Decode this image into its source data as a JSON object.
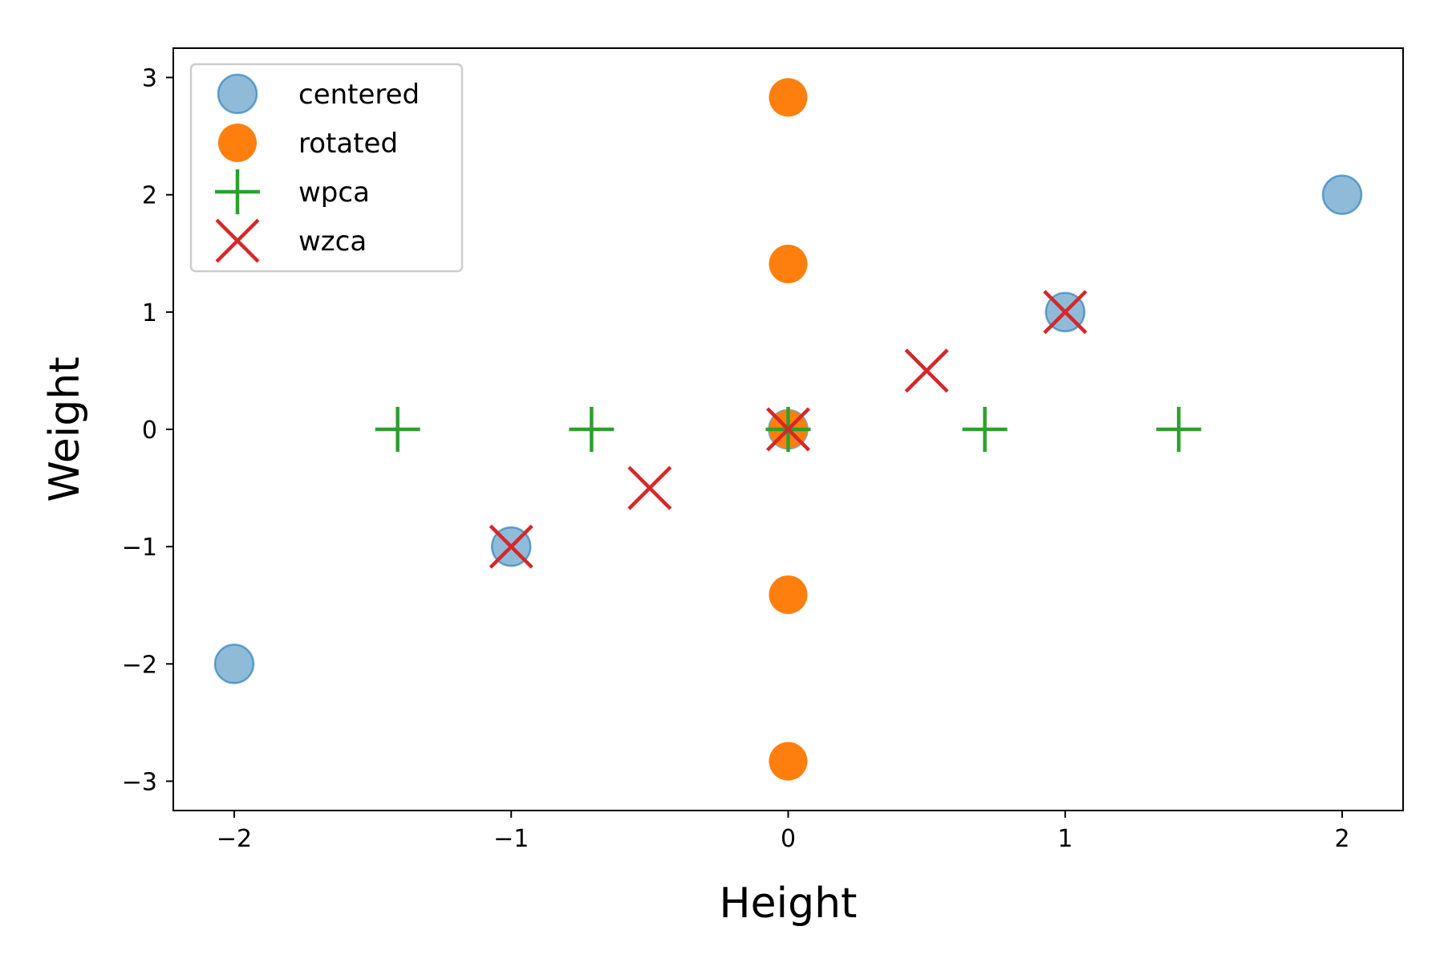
{
  "chart_data": {
    "type": "scatter",
    "title": "",
    "xlabel": "Height",
    "ylabel": "Weight",
    "xlim": [
      -2.22,
      2.22
    ],
    "ylim": [
      -3.25,
      3.25
    ],
    "xticks": [
      -2,
      -1,
      0,
      1,
      2
    ],
    "yticks": [
      -3,
      -2,
      -1,
      0,
      1,
      2,
      3
    ],
    "xtick_labels": [
      "−2",
      "−1",
      "0",
      "1",
      "2"
    ],
    "ytick_labels": [
      "−3",
      "−2",
      "−1",
      "0",
      "1",
      "2",
      "3"
    ],
    "grid": false,
    "legend_position": "upper-left",
    "series": [
      {
        "name": "centered",
        "marker": "circle",
        "color": "#1f77b4",
        "alpha": 0.5,
        "x": [
          -2,
          -1,
          0,
          1,
          2
        ],
        "y": [
          -2,
          -1,
          0,
          1,
          2
        ]
      },
      {
        "name": "rotated",
        "marker": "circle",
        "color": "#ff7f0e",
        "alpha": 1.0,
        "x": [
          0,
          0,
          0,
          0,
          0
        ],
        "y": [
          -2.83,
          -1.41,
          0,
          1.41,
          2.83
        ]
      },
      {
        "name": "wpca",
        "marker": "plus",
        "color": "#2ca02c",
        "alpha": 1.0,
        "x": [
          -1.41,
          -0.71,
          0,
          0.71,
          1.41
        ],
        "y": [
          0,
          0,
          0,
          0,
          0
        ]
      },
      {
        "name": "wzca",
        "marker": "x",
        "color": "#d62728",
        "alpha": 1.0,
        "x": [
          -1,
          -0.5,
          0,
          0.5,
          1
        ],
        "y": [
          -1,
          -0.5,
          0,
          0.5,
          1
        ]
      }
    ]
  }
}
